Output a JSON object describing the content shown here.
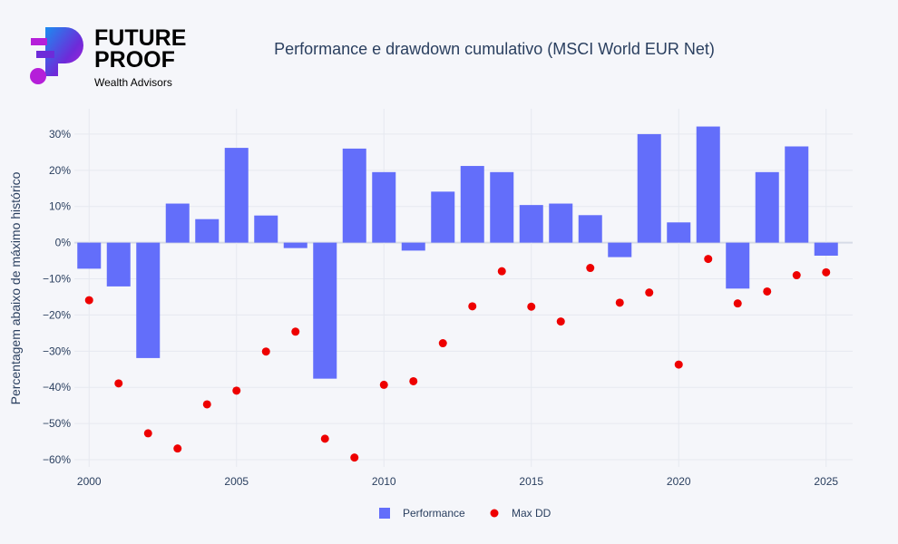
{
  "logo": {
    "line1": "FUTURE",
    "line2": "PROOF",
    "line3": "Wealth Advisors",
    "colors": [
      "#1c8cf0",
      "#6d2bd9",
      "#b51fd9"
    ]
  },
  "chart_data": {
    "type": "bar",
    "title": "Performance e drawdown cumulativo (MSCI World EUR Net)",
    "xlabel": "",
    "ylabel": "Percentagem abaixo de máximo histórico",
    "x": [
      2000,
      2001,
      2002,
      2003,
      2004,
      2005,
      2006,
      2007,
      2008,
      2009,
      2010,
      2011,
      2012,
      2013,
      2014,
      2015,
      2016,
      2017,
      2018,
      2019,
      2020,
      2021,
      2022,
      2023,
      2024,
      2025
    ],
    "xticks": [
      2000,
      2005,
      2010,
      2015,
      2020,
      2025
    ],
    "yticks": [
      30,
      20,
      10,
      0,
      -10,
      -20,
      -30,
      -40,
      -50,
      -60
    ],
    "ylim": [
      -62,
      37
    ],
    "xlim": [
      1999.5,
      2025.9
    ],
    "grid": true,
    "legend_position": "bottom-center",
    "series": [
      {
        "name": "Performance",
        "type": "bar",
        "color": "#636efa",
        "values": [
          -7.2,
          -12.1,
          -31.9,
          10.8,
          6.5,
          26.2,
          7.5,
          -1.5,
          -37.6,
          26.0,
          19.5,
          -2.2,
          14.1,
          21.2,
          19.5,
          10.4,
          10.8,
          7.6,
          -4.0,
          30.0,
          5.6,
          32.1,
          -12.7,
          19.5,
          26.6,
          -3.6
        ]
      },
      {
        "name": "Max DD",
        "type": "scatter",
        "color": "#ee0000",
        "values": [
          -15.9,
          -38.9,
          -52.7,
          -56.9,
          -44.7,
          -40.9,
          -30.1,
          -24.6,
          -54.2,
          -59.4,
          -39.3,
          -38.3,
          -27.8,
          -17.6,
          -7.9,
          -17.7,
          -21.8,
          -7.0,
          -16.6,
          -13.8,
          -33.7,
          -4.5,
          -16.8,
          -13.5,
          -9.0,
          -8.2
        ]
      }
    ]
  }
}
